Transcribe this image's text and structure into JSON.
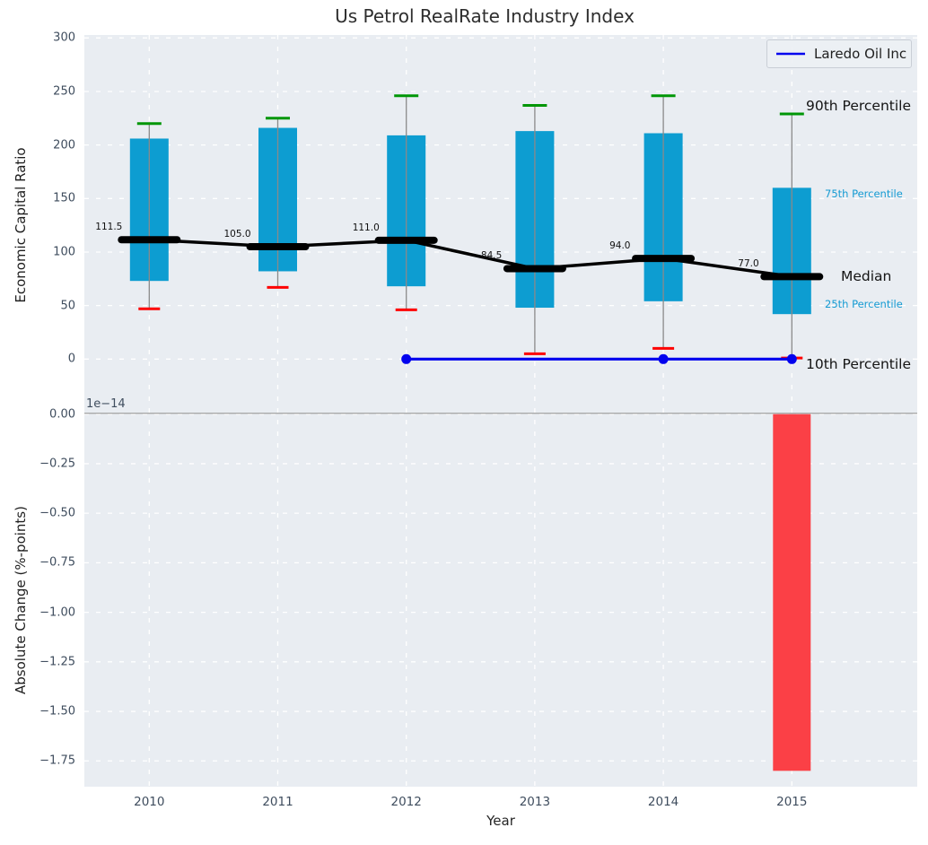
{
  "title": "Us Petrol RealRate Industry Index",
  "xlabel": "Year",
  "legend": {
    "label": "Laredo Oil Inc",
    "line_color": "#0202ee"
  },
  "colors": {
    "box": "#0d9dd1",
    "p90_cap": "#009606",
    "p10_cap": "#fe0000",
    "median": "#000000",
    "whisker": "#8a8a8a",
    "overlay_line": "#0202ee",
    "change_bar": "#fb4046",
    "grid": "#ffffff",
    "plot_bg": "#e9edf2",
    "tick_text": "#3f4d5e",
    "percentile_small_label": "#159bd3",
    "zero_line": "#a8a8a8"
  },
  "chart_data": [
    {
      "type": "box",
      "title": "Us Petrol RealRate Industry Index",
      "ylabel": "Economic Capital Ratio",
      "xlabel": "Year",
      "categories": [
        "2010",
        "2011",
        "2012",
        "2013",
        "2014",
        "2015"
      ],
      "y_ticks": [
        0,
        50,
        100,
        150,
        200,
        250,
        300
      ],
      "ylim": [
        -50,
        302
      ],
      "grid": true,
      "legend_position": "upper right",
      "series": [
        {
          "name": "90th Percentile",
          "values": [
            220,
            225,
            246,
            237,
            246,
            229
          ]
        },
        {
          "name": "75th Percentile",
          "values": [
            206,
            216,
            209,
            213,
            211,
            160
          ]
        },
        {
          "name": "Median",
          "values": [
            111.5,
            105.0,
            111.0,
            84.5,
            94.0,
            77.0
          ]
        },
        {
          "name": "25th Percentile",
          "values": [
            73,
            82,
            68,
            48,
            54,
            42
          ]
        },
        {
          "name": "10th Percentile",
          "values": [
            47,
            67,
            46,
            5,
            10,
            1
          ]
        }
      ],
      "median_labels": [
        "111.5",
        "105.0",
        "111.0",
        "84.5",
        "94.0",
        "77.0"
      ],
      "percentile_annotations": [
        {
          "label": "90th Percentile",
          "style": "large"
        },
        {
          "label": "75th Percentile",
          "style": "small"
        },
        {
          "label": "Median",
          "style": "large"
        },
        {
          "label": "25th Percentile",
          "style": "small"
        },
        {
          "label": "10th Percentile",
          "style": "large"
        }
      ],
      "overlay_line": {
        "name": "Laredo Oil Inc",
        "x": [
          "2012",
          "2013",
          "2014",
          "2015"
        ],
        "values": [
          0,
          0,
          0,
          0
        ],
        "marker_x": [
          "2012",
          "2014",
          "2015"
        ]
      }
    },
    {
      "type": "bar",
      "ylabel": "Absolute Change (%-points)",
      "scale_offset_label": "1e−14",
      "categories": [
        "2010",
        "2011",
        "2012",
        "2013",
        "2014",
        "2015"
      ],
      "values_in_1e14": [
        0,
        0,
        0,
        0,
        0,
        -1.8
      ],
      "y_tick_labels": [
        "0.00",
        "−0.25",
        "−0.50",
        "−0.75",
        "−1.00",
        "−1.25",
        "−1.50",
        "−1.75"
      ],
      "y_tick_values": [
        0,
        -0.25,
        -0.5,
        -0.75,
        -1.0,
        -1.25,
        -1.5,
        -1.75
      ],
      "ylim_in_1e14": [
        -1.88,
        0.005
      ],
      "grid": true
    }
  ]
}
